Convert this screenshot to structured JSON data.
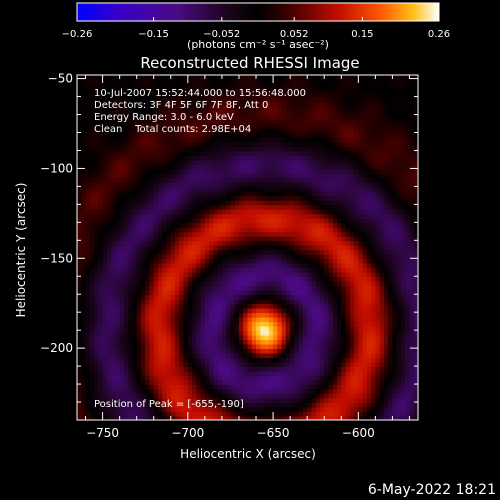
{
  "chart_data": {
    "type": "heatmap",
    "title": "Reconstructed RHESSI Image",
    "xlabel": "Heliocentric X (arcsec)",
    "ylabel": "Heliocentric Y (arcsec)",
    "xlim": [
      -765,
      -565
    ],
    "ylim": [
      -240,
      -48
    ],
    "x_ticks": [
      -750,
      -700,
      -650,
      -600
    ],
    "x_tick_labels": [
      "−750",
      "−700",
      "−650",
      "−600"
    ],
    "y_ticks": [
      -50,
      -100,
      -150,
      -200
    ],
    "y_tick_labels": [
      "−50",
      "−100",
      "−150",
      "−200"
    ],
    "colorbar": {
      "min": -0.26,
      "max": 0.26,
      "ticks": [
        -0.26,
        -0.15,
        -0.052,
        0.052,
        0.15,
        0.26
      ],
      "tick_labels": [
        "−0.26",
        "−0.15",
        "−0.052",
        "0.052",
        "0.15",
        "0.26"
      ],
      "units_label": "(photons cm⁻² s⁻¹ asec⁻²)",
      "colors": [
        "#0000ff",
        "#4b00b0",
        "#3a0a2a",
        "#000000",
        "#5a0000",
        "#c81000",
        "#ff6000",
        "#ffcc20",
        "#ffffff"
      ]
    },
    "annotations": [
      "10-Jul-2007 15:52:44.000 to 15:56:48.000",
      "Detectors: 3F 4F 5F 6F 7F 8F, Att 0",
      "Energy Range: 3.0 - 6.0 keV",
      "Clean    Total counts: 2.98E+04"
    ],
    "peak_label": "Position of Peak = [-655,-190]",
    "peak": {
      "x": -655,
      "y": -190,
      "value": 0.26
    },
    "rings": [
      {
        "name": "inner-negative",
        "radius_arcsec": 30,
        "value": -0.12
      },
      {
        "name": "positive",
        "radius_arcsec": 62,
        "value": 0.12
      },
      {
        "name": "outer-negative",
        "radius_arcsec": 92,
        "value": -0.1
      },
      {
        "name": "outer-positive",
        "radius_arcsec": 118,
        "value": 0.05
      }
    ],
    "footer_date": "6-May-2022 18:21"
  }
}
